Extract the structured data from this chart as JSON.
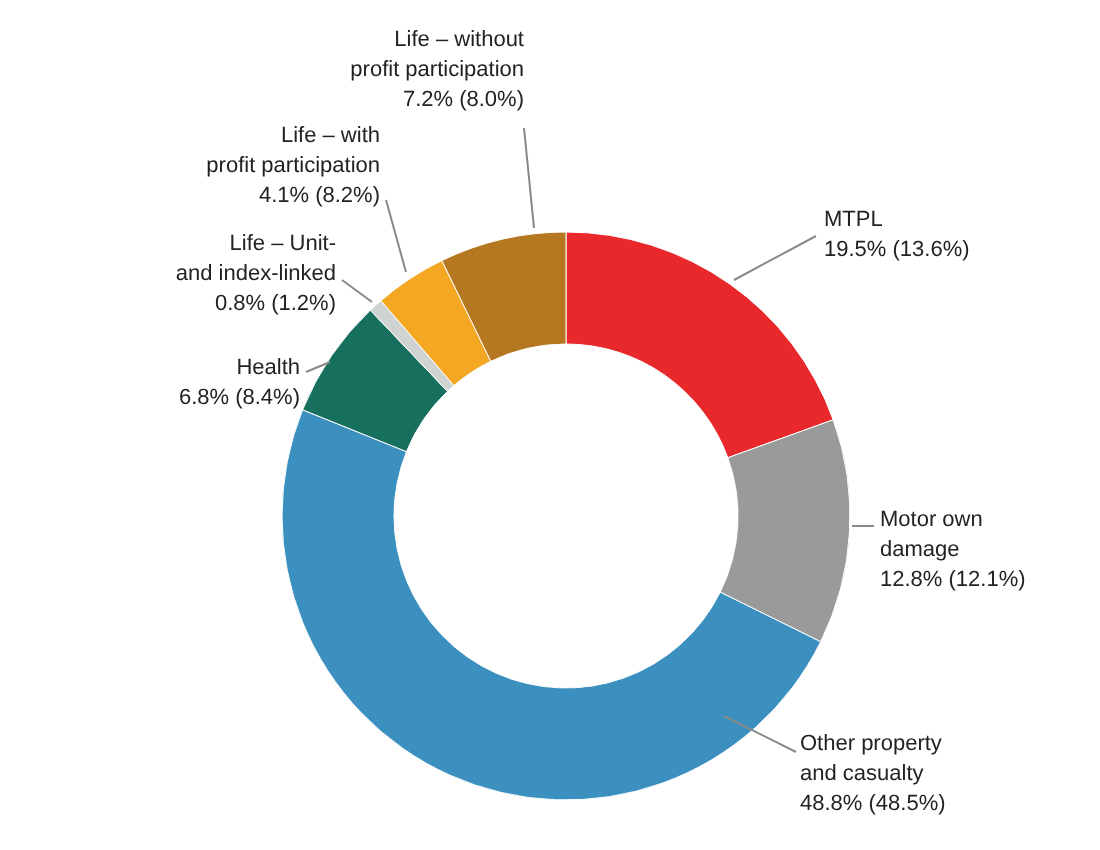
{
  "chart_data": {
    "type": "donut",
    "categories": [
      "MTPL",
      "Motor own damage",
      "Other property and casualty",
      "Health",
      "Life – Unit- and index-linked",
      "Life – with profit participation",
      "Life – without profit participation"
    ],
    "values": [
      19.5,
      12.8,
      48.8,
      6.8,
      0.8,
      4.1,
      7.2
    ],
    "colors": [
      "#e8282b",
      "#9b9a9b",
      "#3b90c0",
      "#17705e",
      "#cfd4d2",
      "#f4a722",
      "#b5771f"
    ],
    "value_labels": [
      "19.5% (13.6%)",
      "12.8% (12.1%)",
      "48.8% (48.5%)",
      "6.8% (8.4%)",
      "0.8% (1.2%)",
      "4.1% (8.2%)",
      "7.2% (8.0%)"
    ]
  }
}
